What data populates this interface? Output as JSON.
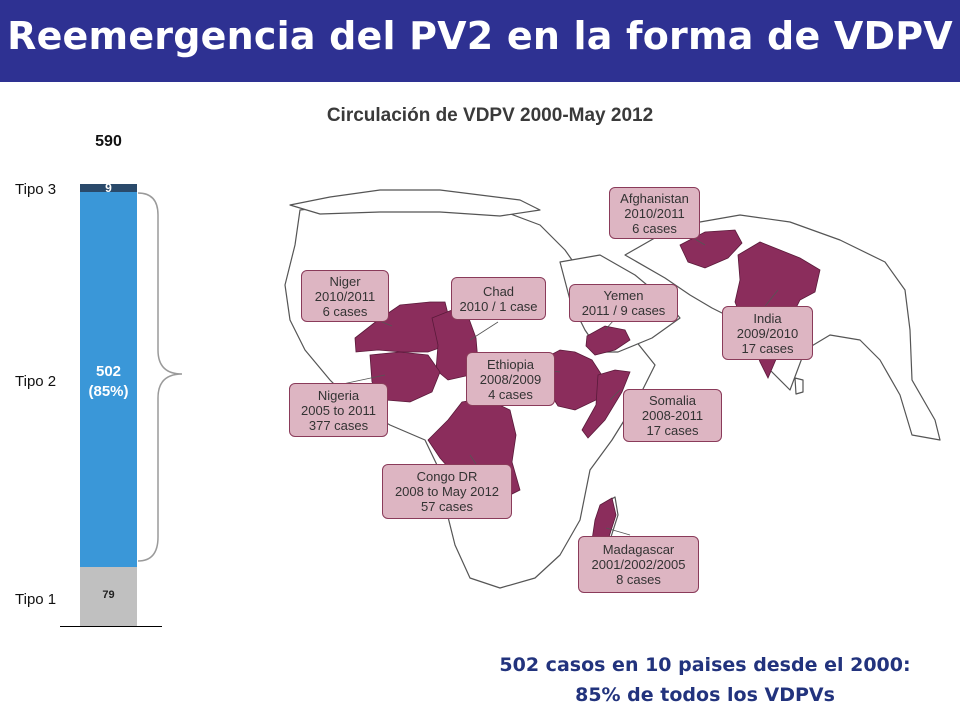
{
  "header": {
    "title": "Reemergencia del PV2 en la forma de VDPV"
  },
  "chart": {
    "title": "Circulación de VDPV 2000-May 2012",
    "total": "590",
    "type3_label": "Tipo 3",
    "type2_label": "Tipo 2",
    "type1_label": "Tipo 1"
  },
  "chart_data": {
    "type": "bar",
    "categories": [
      "Tipo 1",
      "Tipo 2",
      "Tipo 3"
    ],
    "values": [
      79,
      502,
      9
    ],
    "total": 590,
    "stacked": true,
    "type2_value": "502",
    "type2_pct": "(85%)",
    "type3_value": "9",
    "type1_value": "79",
    "colors": {
      "Tipo 1": "#c0c0c0",
      "Tipo 2": "#3a97d8",
      "Tipo 3": "#2a4a6b"
    }
  },
  "map": {
    "highlight_color": "#8b2d5c",
    "callouts": [
      {
        "id": "afghanistan",
        "lines": [
          "Afghanistan",
          "2010/2011",
          "6 cases"
        ]
      },
      {
        "id": "niger",
        "lines": [
          "Niger",
          "2010/2011",
          "6 cases"
        ]
      },
      {
        "id": "chad",
        "lines": [
          "Chad",
          "2010 / 1 case"
        ]
      },
      {
        "id": "yemen",
        "lines": [
          "Yemen",
          "2011 / 9 cases"
        ]
      },
      {
        "id": "india",
        "lines": [
          "India",
          "2009/2010",
          "17 cases"
        ]
      },
      {
        "id": "ethiopia",
        "lines": [
          "Ethiopia",
          "2008/2009",
          "4 cases"
        ]
      },
      {
        "id": "nigeria",
        "lines": [
          "Nigeria",
          "2005 to 2011",
          "377 cases"
        ]
      },
      {
        "id": "somalia",
        "lines": [
          "Somalia",
          "2008-2011",
          "17 cases"
        ]
      },
      {
        "id": "congo",
        "lines": [
          "Congo DR",
          "2008 to May 2012",
          "57 cases"
        ]
      },
      {
        "id": "madagascar",
        "lines": [
          "Madagascar",
          "2001/2002/2005",
          "8 cases"
        ]
      }
    ]
  },
  "summary": {
    "line1": "502 casos en 10 paises desde el  2000:",
    "line2": "85% de todos los VDPVs"
  }
}
